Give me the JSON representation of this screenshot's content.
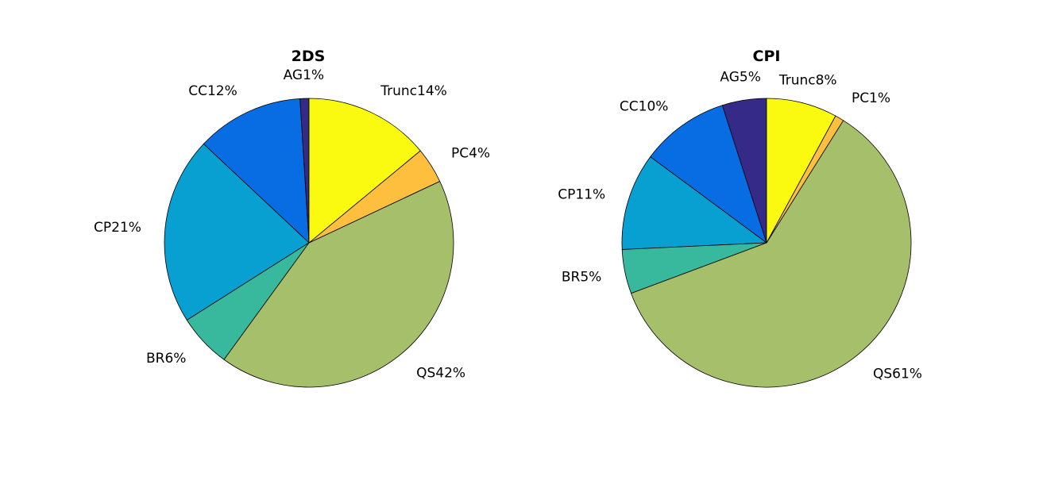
{
  "chart_data": [
    {
      "type": "pie",
      "title": "2DS",
      "slices": [
        {
          "label": "Trunc14%",
          "name": "Trunc",
          "value": 14,
          "color": "#F9FA0F"
        },
        {
          "label": "PC4%",
          "name": "PC",
          "value": 4,
          "color": "#FDBF3D"
        },
        {
          "label": "QS42%",
          "name": "QS",
          "value": 42,
          "color": "#A5BF6B"
        },
        {
          "label": "BR6%",
          "name": "BR",
          "value": 6,
          "color": "#38B89C"
        },
        {
          "label": "CP21%",
          "name": "CP",
          "value": 21,
          "color": "#089FD1"
        },
        {
          "label": "CC12%",
          "name": "CC",
          "value": 12,
          "color": "#086DE2"
        },
        {
          "label": "AG1%",
          "name": "AG",
          "value": 1,
          "color": "#352A87"
        }
      ]
    },
    {
      "type": "pie",
      "title": "CPI",
      "slices": [
        {
          "label": "Trunc8%",
          "name": "Trunc",
          "value": 8,
          "color": "#F9FA0F"
        },
        {
          "label": "PC1%",
          "name": "PC",
          "value": 1,
          "color": "#FDBF3D"
        },
        {
          "label": "QS61%",
          "name": "QS",
          "value": 61,
          "color": "#A5BF6B"
        },
        {
          "label": "BR5%",
          "name": "BR",
          "value": 5,
          "color": "#38B89C"
        },
        {
          "label": "CP11%",
          "name": "CP",
          "value": 11,
          "color": "#089FD1"
        },
        {
          "label": "CC10%",
          "name": "CC",
          "value": 10,
          "color": "#086DE2"
        },
        {
          "label": "AG5%",
          "name": "AG",
          "value": 5,
          "color": "#352A87"
        }
      ]
    }
  ]
}
